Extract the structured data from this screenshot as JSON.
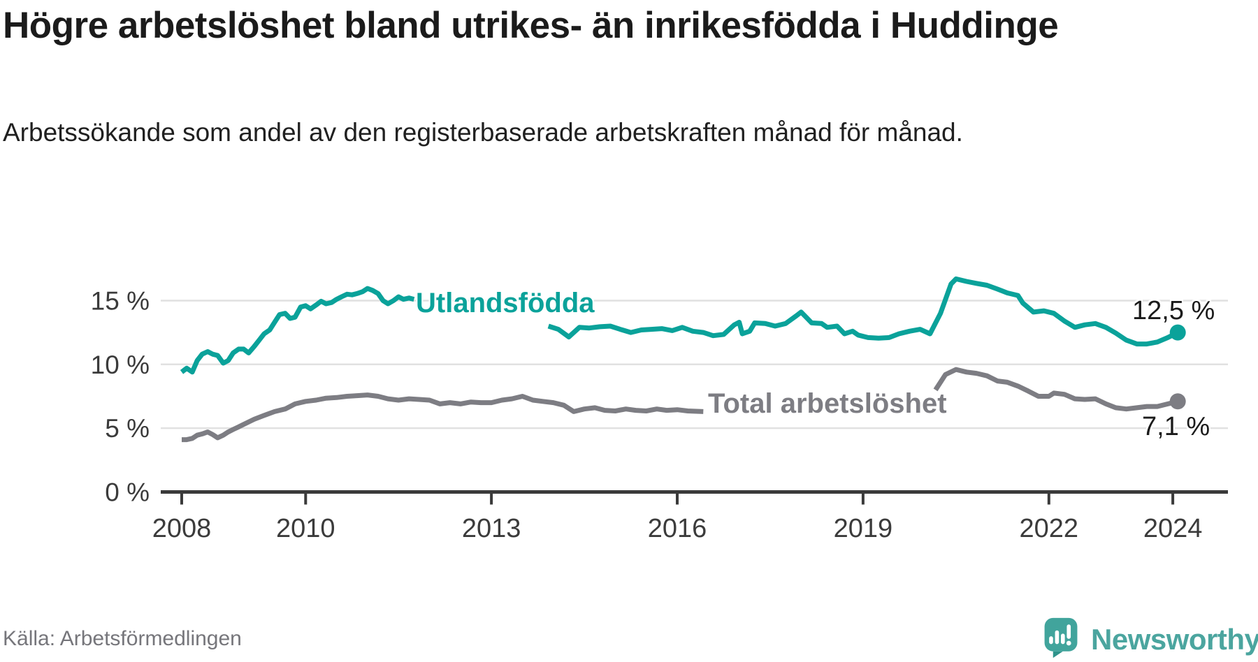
{
  "chart_data": {
    "type": "line",
    "title": "Högre arbetslöshet bland utrikes- än inrikesfödda i Huddinge",
    "subtitle": "Arbetssökande som andel av den registerbaserade arbetskraften månad för månad.",
    "grid_color": "#e1e1e1",
    "axis_color": "#3a3a3a",
    "x_range": [
      2007.66,
      2024.9
    ],
    "y_range": [
      0,
      18.6
    ],
    "x_axis": {
      "ticks": [
        {
          "label": "2008",
          "year": 2008
        },
        {
          "label": "2010",
          "year": 2010
        },
        {
          "label": "2013",
          "year": 2013
        },
        {
          "label": "2016",
          "year": 2016
        },
        {
          "label": "2019",
          "year": 2019
        },
        {
          "label": "2022",
          "year": 2022
        },
        {
          "label": "2024",
          "year": 2024
        }
      ]
    },
    "y_axis": {
      "ticks": [
        {
          "label": "0 %",
          "value": 0
        },
        {
          "label": "5 %",
          "value": 5
        },
        {
          "label": "10 %",
          "value": 10
        },
        {
          "label": "15 %",
          "value": 15
        }
      ]
    },
    "series": [
      {
        "name": "Utlandsfödda",
        "color": "#0aa29a",
        "end_label": "12,5 %",
        "end_value": 12.5,
        "segments": [
          [
            [
              2008.0,
              9.4
            ],
            [
              2008.08,
              9.7
            ],
            [
              2008.17,
              9.4
            ],
            [
              2008.25,
              10.3
            ],
            [
              2008.33,
              10.8
            ],
            [
              2008.42,
              11.0
            ],
            [
              2008.5,
              10.8
            ],
            [
              2008.58,
              10.7
            ],
            [
              2008.67,
              10.1
            ],
            [
              2008.75,
              10.3
            ],
            [
              2008.83,
              10.9
            ],
            [
              2008.92,
              11.2
            ],
            [
              2009.0,
              11.2
            ],
            [
              2009.08,
              10.9
            ],
            [
              2009.17,
              11.4
            ],
            [
              2009.25,
              11.9
            ],
            [
              2009.33,
              12.4
            ],
            [
              2009.42,
              12.7
            ],
            [
              2009.5,
              13.3
            ],
            [
              2009.58,
              13.9
            ],
            [
              2009.67,
              14.0
            ],
            [
              2009.75,
              13.6
            ],
            [
              2009.83,
              13.7
            ],
            [
              2009.92,
              14.5
            ],
            [
              2010.0,
              14.6
            ],
            [
              2010.08,
              14.35
            ],
            [
              2010.17,
              14.65
            ],
            [
              2010.25,
              14.95
            ],
            [
              2010.33,
              14.75
            ],
            [
              2010.42,
              14.85
            ],
            [
              2010.5,
              15.1
            ],
            [
              2010.58,
              15.3
            ],
            [
              2010.67,
              15.5
            ],
            [
              2010.75,
              15.45
            ],
            [
              2010.83,
              15.55
            ],
            [
              2010.92,
              15.7
            ],
            [
              2011.0,
              15.95
            ],
            [
              2011.08,
              15.8
            ],
            [
              2011.17,
              15.55
            ],
            [
              2011.25,
              15.0
            ],
            [
              2011.33,
              14.75
            ],
            [
              2011.42,
              15.0
            ],
            [
              2011.5,
              15.3
            ],
            [
              2011.58,
              15.1
            ],
            [
              2011.67,
              15.2
            ],
            [
              2011.75,
              15.1
            ]
          ],
          [
            [
              2013.92,
              13.0
            ],
            [
              2014.08,
              12.75
            ],
            [
              2014.25,
              12.15
            ],
            [
              2014.42,
              12.9
            ],
            [
              2014.58,
              12.85
            ],
            [
              2014.75,
              12.95
            ],
            [
              2014.92,
              13.0
            ],
            [
              2015.08,
              12.75
            ],
            [
              2015.25,
              12.5
            ],
            [
              2015.42,
              12.7
            ],
            [
              2015.58,
              12.75
            ],
            [
              2015.75,
              12.8
            ],
            [
              2015.92,
              12.65
            ],
            [
              2016.08,
              12.9
            ],
            [
              2016.25,
              12.6
            ],
            [
              2016.42,
              12.5
            ],
            [
              2016.58,
              12.25
            ],
            [
              2016.75,
              12.35
            ],
            [
              2016.92,
              13.1
            ],
            [
              2017.0,
              13.3
            ],
            [
              2017.05,
              12.4
            ],
            [
              2017.17,
              12.6
            ],
            [
              2017.25,
              13.25
            ],
            [
              2017.42,
              13.2
            ],
            [
              2017.58,
              13.0
            ],
            [
              2017.75,
              13.2
            ],
            [
              2017.92,
              13.8
            ],
            [
              2018.0,
              14.1
            ],
            [
              2018.08,
              13.7
            ],
            [
              2018.17,
              13.25
            ],
            [
              2018.33,
              13.2
            ],
            [
              2018.42,
              12.9
            ],
            [
              2018.58,
              13.0
            ],
            [
              2018.7,
              12.4
            ],
            [
              2018.83,
              12.6
            ],
            [
              2018.92,
              12.3
            ],
            [
              2019.08,
              12.1
            ],
            [
              2019.25,
              12.05
            ],
            [
              2019.42,
              12.1
            ],
            [
              2019.58,
              12.4
            ],
            [
              2019.75,
              12.6
            ],
            [
              2019.92,
              12.75
            ],
            [
              2020.08,
              12.4
            ],
            [
              2020.25,
              14.0
            ],
            [
              2020.42,
              16.3
            ],
            [
              2020.5,
              16.7
            ],
            [
              2020.67,
              16.5
            ],
            [
              2020.83,
              16.35
            ],
            [
              2021.0,
              16.2
            ],
            [
              2021.17,
              15.9
            ],
            [
              2021.33,
              15.6
            ],
            [
              2021.5,
              15.4
            ],
            [
              2021.58,
              14.8
            ],
            [
              2021.75,
              14.1
            ],
            [
              2021.92,
              14.2
            ],
            [
              2022.08,
              14.0
            ],
            [
              2022.25,
              13.4
            ],
            [
              2022.42,
              12.9
            ],
            [
              2022.58,
              13.1
            ],
            [
              2022.75,
              13.2
            ],
            [
              2022.92,
              12.9
            ],
            [
              2023.08,
              12.45
            ],
            [
              2023.25,
              11.9
            ],
            [
              2023.42,
              11.6
            ],
            [
              2023.58,
              11.6
            ],
            [
              2023.75,
              11.75
            ],
            [
              2023.92,
              12.1
            ],
            [
              2024.08,
              12.5
            ]
          ]
        ]
      },
      {
        "name": "Total arbetslöshet",
        "color": "#7d7d83",
        "end_label": "7,1 %",
        "end_value": 7.1,
        "segments": [
          [
            [
              2008.0,
              4.1
            ],
            [
              2008.08,
              4.1
            ],
            [
              2008.17,
              4.2
            ],
            [
              2008.25,
              4.45
            ],
            [
              2008.33,
              4.55
            ],
            [
              2008.42,
              4.7
            ],
            [
              2008.5,
              4.5
            ],
            [
              2008.58,
              4.25
            ],
            [
              2008.67,
              4.45
            ],
            [
              2008.75,
              4.7
            ],
            [
              2008.83,
              4.9
            ],
            [
              2008.92,
              5.1
            ],
            [
              2009.0,
              5.3
            ],
            [
              2009.17,
              5.7
            ],
            [
              2009.33,
              6.0
            ],
            [
              2009.5,
              6.3
            ],
            [
              2009.67,
              6.5
            ],
            [
              2009.83,
              6.9
            ],
            [
              2010.0,
              7.1
            ],
            [
              2010.17,
              7.2
            ],
            [
              2010.33,
              7.35
            ],
            [
              2010.5,
              7.4
            ],
            [
              2010.67,
              7.5
            ],
            [
              2010.83,
              7.55
            ],
            [
              2011.0,
              7.6
            ],
            [
              2011.17,
              7.5
            ],
            [
              2011.33,
              7.3
            ],
            [
              2011.5,
              7.2
            ],
            [
              2011.67,
              7.3
            ],
            [
              2011.83,
              7.25
            ],
            [
              2012.0,
              7.2
            ],
            [
              2012.17,
              6.9
            ],
            [
              2012.33,
              7.0
            ],
            [
              2012.5,
              6.9
            ],
            [
              2012.67,
              7.05
            ],
            [
              2012.83,
              7.0
            ],
            [
              2013.0,
              7.0
            ],
            [
              2013.17,
              7.2
            ],
            [
              2013.33,
              7.3
            ],
            [
              2013.5,
              7.5
            ],
            [
              2013.67,
              7.2
            ],
            [
              2013.83,
              7.1
            ],
            [
              2014.0,
              7.0
            ],
            [
              2014.17,
              6.8
            ],
            [
              2014.33,
              6.3
            ],
            [
              2014.5,
              6.5
            ],
            [
              2014.67,
              6.6
            ],
            [
              2014.83,
              6.4
            ],
            [
              2015.0,
              6.35
            ],
            [
              2015.17,
              6.5
            ],
            [
              2015.33,
              6.4
            ],
            [
              2015.5,
              6.35
            ],
            [
              2015.67,
              6.5
            ],
            [
              2015.83,
              6.4
            ],
            [
              2016.0,
              6.45
            ],
            [
              2016.17,
              6.35
            ],
            [
              2016.42,
              6.3
            ]
          ],
          [
            [
              2020.17,
              8.0
            ],
            [
              2020.33,
              9.2
            ],
            [
              2020.5,
              9.6
            ],
            [
              2020.67,
              9.4
            ],
            [
              2020.83,
              9.3
            ],
            [
              2021.0,
              9.1
            ],
            [
              2021.17,
              8.7
            ],
            [
              2021.33,
              8.6
            ],
            [
              2021.5,
              8.3
            ],
            [
              2021.67,
              7.9
            ],
            [
              2021.83,
              7.5
            ],
            [
              2022.0,
              7.5
            ],
            [
              2022.08,
              7.75
            ],
            [
              2022.25,
              7.65
            ],
            [
              2022.42,
              7.3
            ],
            [
              2022.58,
              7.25
            ],
            [
              2022.75,
              7.3
            ],
            [
              2022.92,
              6.9
            ],
            [
              2023.08,
              6.6
            ],
            [
              2023.25,
              6.5
            ],
            [
              2023.42,
              6.6
            ],
            [
              2023.58,
              6.7
            ],
            [
              2023.75,
              6.7
            ],
            [
              2023.92,
              6.9
            ],
            [
              2024.08,
              7.1
            ]
          ]
        ]
      }
    ]
  },
  "footer": {
    "source": "Källa: Arbetsförmedlingen",
    "brand": "Newsworthy",
    "brand_icon": "speech-bubble-bar-chart-exclamation",
    "brand_color": "#41a49c"
  }
}
